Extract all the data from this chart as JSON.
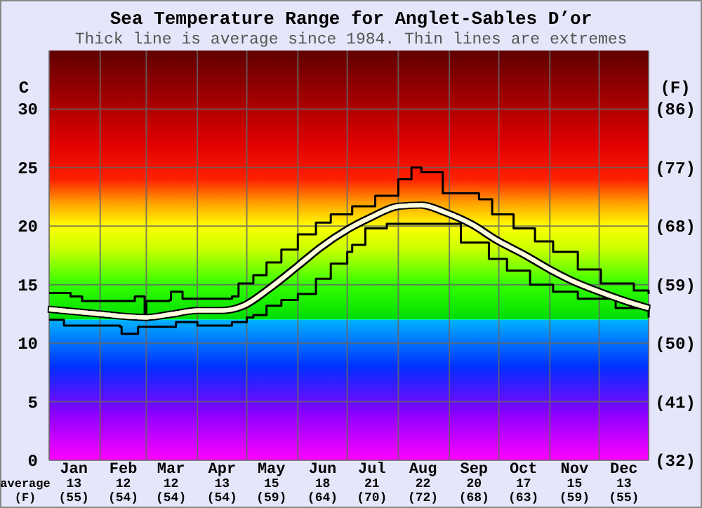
{
  "chart_data": {
    "type": "line",
    "title": "Sea Temperature Range for Anglet-Sables D’or",
    "subtitle": "Thick line is average since 1984. Thin lines are extremes",
    "ylabel": "C",
    "y2label": "(F)",
    "annotations": [
      "average",
      "(F)"
    ],
    "xlim": [
      "--01-01",
      "--12-31"
    ],
    "xticks": [
      {
        "value": "--01-01",
        "label": null
      },
      {
        "value": "--01-16",
        "label": "Jan\n13\n(55)"
      },
      {
        "value": "--02-01",
        "label": null
      },
      {
        "value": "--02-15",
        "label": "Feb\n12\n(54)"
      },
      {
        "value": "--03-01",
        "label": null
      },
      {
        "value": "--03-16",
        "label": "Mar\n12\n(54)"
      },
      {
        "value": "--04-01",
        "label": null
      },
      {
        "value": "--04-16",
        "label": "Apr\n13\n(54)"
      },
      {
        "value": "--05-01",
        "label": null
      },
      {
        "value": "--05-16",
        "label": "May\n15\n(59)"
      },
      {
        "value": "--06-01",
        "label": null
      },
      {
        "value": "--06-16",
        "label": "Jun\n18\n(64)"
      },
      {
        "value": "--07-01",
        "label": null
      },
      {
        "value": "--07-16",
        "label": "Jul\n21\n(70)"
      },
      {
        "value": "--08-01",
        "label": null
      },
      {
        "value": "--08-16",
        "label": "Aug\n22\n(72)"
      },
      {
        "value": "--09-01",
        "label": null
      },
      {
        "value": "--09-16",
        "label": "Sep\n20\n(68)"
      },
      {
        "value": "--10-01",
        "label": null
      },
      {
        "value": "--10-16",
        "label": "Oct\n17\n(63)"
      },
      {
        "value": "--11-01",
        "label": null
      },
      {
        "value": "--11-16",
        "label": "Nov\n15\n(59)"
      },
      {
        "value": "--12-01",
        "label": null
      },
      {
        "value": "--12-16",
        "label": "Dec\n13\n(55)"
      },
      {
        "value": "--12-31",
        "label": null
      }
    ],
    "ylim": [
      0,
      35
    ],
    "yticks": [
      0,
      5,
      10,
      15,
      20,
      25,
      30
    ],
    "y2lim": [
      32,
      95
    ],
    "y2ticks": [
      {
        "value": 32,
        "label": "(32)"
      },
      {
        "value": 41,
        "label": "(41)"
      },
      {
        "value": 50,
        "label": "(50)"
      },
      {
        "value": 59,
        "label": "(59)"
      },
      {
        "value": 68,
        "label": "(68)"
      },
      {
        "value": 77,
        "label": "(77)"
      },
      {
        "value": 86,
        "label": "(86)"
      }
    ],
    "grid": true,
    "series": [
      {
        "type": "step",
        "color": "#000000",
        "x": [
          "--01-01",
          "--01-14",
          "--01-21",
          "--02-21",
          "--02-22",
          "--02-27",
          "--02-28",
          "--03-01",
          "--03-15",
          "--03-16",
          "--03-21",
          "--03-23",
          "--04-22",
          "--04-26",
          "--05-05",
          "--05-13",
          "--05-22",
          "--06-01",
          "--06-12",
          "--06-21",
          "--07-04",
          "--07-18",
          "--08-01",
          "--08-09",
          "--08-15",
          "--08-27",
          "--08-28",
          "--09-19",
          "--09-27",
          "--10-10",
          "--10-23",
          "--11-03",
          "--11-18",
          "--12-02",
          "--12-22",
          "--12-31"
        ],
        "values": [
          14.3,
          14.0,
          13.6,
          13.6,
          14.0,
          14.0,
          12.4,
          13.6,
          13.7,
          14.4,
          14.4,
          13.8,
          14.0,
          15.1,
          15.8,
          16.9,
          18.0,
          19.3,
          20.3,
          21.0,
          21.7,
          22.6,
          24.0,
          25.0,
          24.6,
          24.6,
          22.8,
          22.3,
          21.0,
          19.8,
          18.7,
          17.8,
          16.3,
          15.1,
          14.5,
          14.2
        ]
      },
      {
        "type": "step",
        "color": "#000000",
        "x": [
          "--01-01",
          "--01-10",
          "--02-13",
          "--02-14",
          "--02-23",
          "--02-24",
          "--03-19",
          "--04-01",
          "--04-22",
          "--05-01",
          "--05-05",
          "--05-13",
          "--05-22",
          "--06-01",
          "--06-12",
          "--06-21",
          "--07-01",
          "--07-04",
          "--07-12",
          "--07-25",
          "--08-30",
          "--09-08",
          "--09-25",
          "--10-06",
          "--10-20",
          "--11-03",
          "--11-18",
          "--12-11",
          "--12-31"
        ],
        "values": [
          12.0,
          11.5,
          11.4,
          10.8,
          10.8,
          11.4,
          11.8,
          11.5,
          11.8,
          12.2,
          12.4,
          13.2,
          13.7,
          14.2,
          15.5,
          16.8,
          17.8,
          18.4,
          19.8,
          20.2,
          20.2,
          18.6,
          17.2,
          16.2,
          15.0,
          14.4,
          13.8,
          13.0,
          12.2
        ]
      },
      {
        "color": "#ffffe0",
        "x": [
          "--01-01",
          "--01-16",
          "--02-01",
          "--02-15",
          "--03-01",
          "--03-17",
          "--04-01",
          "--04-16",
          "--04-29",
          "--05-14",
          "--06-01",
          "--06-15",
          "--07-01",
          "--07-16",
          "--08-01",
          "--08-15",
          "--08-29",
          "--09-14",
          "--10-01",
          "--10-16",
          "--11-01",
          "--11-15",
          "--12-01",
          "--12-17",
          "--12-31"
        ],
        "values": [
          12.9,
          12.7,
          12.5,
          12.3,
          12.2,
          12.5,
          12.8,
          12.8,
          13.2,
          14.6,
          16.6,
          18.2,
          19.7,
          20.8,
          21.7,
          21.8,
          21.2,
          20.2,
          18.7,
          17.6,
          16.3,
          15.3,
          14.4,
          13.6,
          13.0
        ]
      }
    ]
  }
}
